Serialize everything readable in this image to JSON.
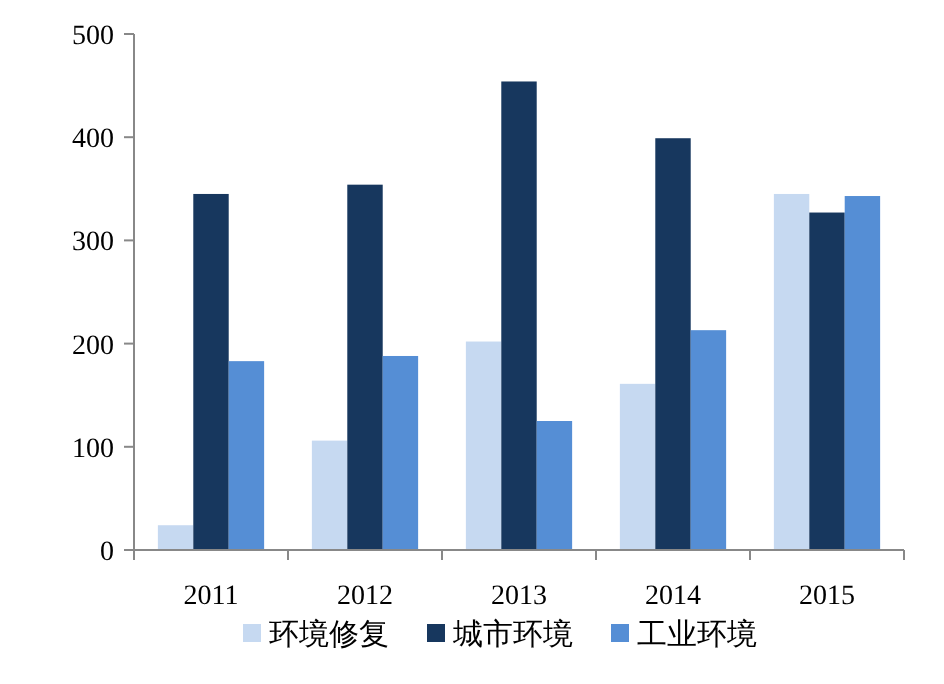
{
  "chart_data": {
    "type": "bar",
    "categories": [
      "2011",
      "2012",
      "2013",
      "2014",
      "2015"
    ],
    "series": [
      {
        "name": "环境修复",
        "color": "#c6d9f1",
        "values": [
          24,
          106,
          202,
          161,
          345
        ]
      },
      {
        "name": "城市环境",
        "color": "#17375e",
        "values": [
          345,
          354,
          454,
          399,
          327
        ]
      },
      {
        "name": "工业环境",
        "color": "#558ed5",
        "values": [
          183,
          188,
          125,
          213,
          343
        ]
      }
    ],
    "ylim": [
      0,
      500
    ],
    "yticks": [
      0,
      100,
      200,
      300,
      400,
      500
    ],
    "grid": false,
    "legend": "bottom"
  }
}
